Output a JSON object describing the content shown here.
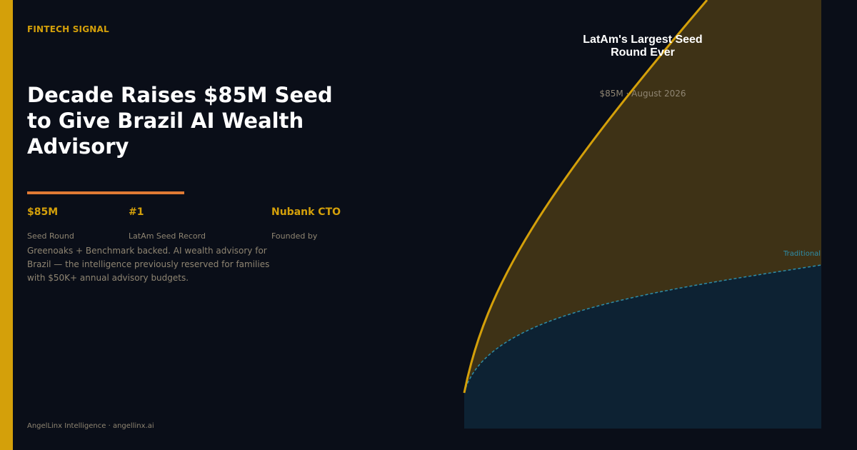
{
  "brand": {
    "kicker": "FINTECH SIGNAL",
    "footer": "AngelLinx Intelligence · angellinx.ai",
    "accent_color": "#d4a00a",
    "divider_color": "#e07a34",
    "background_color": "#0a0e18"
  },
  "headline": "Decade Raises $85M Seed to Give Brazil AI Wealth Advisory",
  "stats": [
    {
      "value": "$85M",
      "label": "Seed Round"
    },
    {
      "value": "#1",
      "label": "LatAm Seed Record"
    },
    {
      "value": "Nubank CTO",
      "label": "Founded by"
    }
  ],
  "description": "Greenoaks + Benchmark backed. AI wealth advisory for Brazil — the intelligence previously reserved for families with $50K+ annual advisory budgets.",
  "chart": {
    "title": "LatAm's Largest Seed Round Ever",
    "subtitle": "$85M · August 2026",
    "series_label": "Traditional",
    "colors": {
      "primary_line": "#d4a00a",
      "primary_fill": "#3e3216",
      "secondary_line": "#2e8da8",
      "secondary_fill": "#0d2233"
    }
  }
}
